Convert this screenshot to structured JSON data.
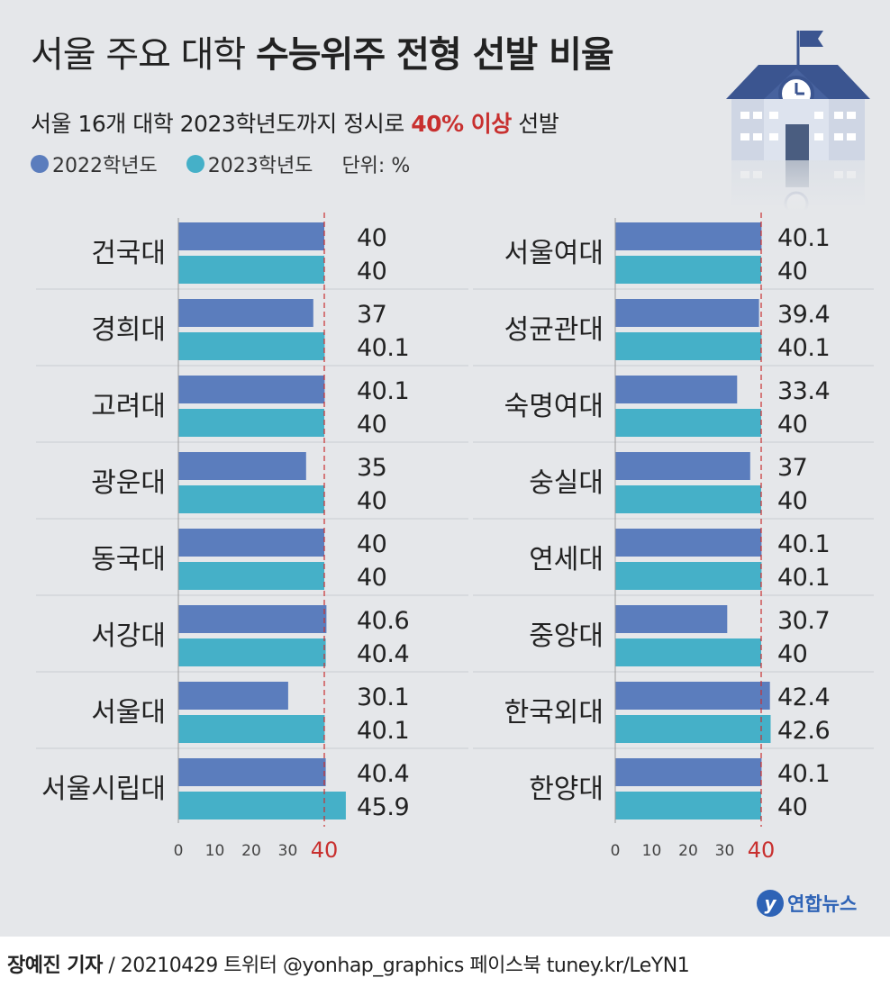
{
  "title_light": "서울 주요 대학",
  "title_bold": "수능위주 전형 선발 비율",
  "subtitle_pre": "서울 16개 대학 2023학년도까지 정시로",
  "subtitle_highlight": "40% 이상",
  "subtitle_post": "선발",
  "legend": {
    "series1": "2022학년도",
    "series2": "2023학년도",
    "unit": "단위: %"
  },
  "colors": {
    "series_2022": "#5b7dbd",
    "series_2023": "#45b0c8",
    "highlight": "#c8302f",
    "background": "#e5e7ea"
  },
  "chart_data": [
    {
      "type": "bar",
      "orientation": "horizontal",
      "categories": [
        "건국대",
        "경희대",
        "고려대",
        "광운대",
        "동국대",
        "서강대",
        "서울대",
        "서울시립대"
      ],
      "series": [
        {
          "name": "2022학년도",
          "values": [
            40,
            37,
            40.1,
            35,
            40,
            40.6,
            30.1,
            40.4
          ]
        },
        {
          "name": "2023학년도",
          "values": [
            40,
            40.1,
            40,
            40,
            40,
            40.4,
            40.1,
            45.9
          ]
        }
      ],
      "value_labels": [
        [
          "40",
          "37",
          "40.1",
          "35",
          "40",
          "40.6",
          "30.1",
          "40.4"
        ],
        [
          "40",
          "40.1",
          "40",
          "40",
          "40",
          "40.4",
          "40.1",
          "45.9"
        ]
      ],
      "x_ticks": [
        "0",
        "10",
        "20",
        "30"
      ],
      "reference_value": 40,
      "reference_label": "40",
      "xlim": [
        0,
        47
      ]
    },
    {
      "type": "bar",
      "orientation": "horizontal",
      "categories": [
        "서울여대",
        "성균관대",
        "숙명여대",
        "숭실대",
        "연세대",
        "중앙대",
        "한국외대",
        "한양대"
      ],
      "series": [
        {
          "name": "2022학년도",
          "values": [
            40.1,
            39.4,
            33.4,
            37,
            40.1,
            30.7,
            42.4,
            40.1
          ]
        },
        {
          "name": "2023학년도",
          "values": [
            40,
            40.1,
            40,
            40,
            40.1,
            40,
            42.6,
            40
          ]
        }
      ],
      "value_labels": [
        [
          "40.1",
          "39.4",
          "33.4",
          "37",
          "40.1",
          "30.7",
          "42.4",
          "40.1"
        ],
        [
          "40",
          "40.1",
          "40",
          "40",
          "40.1",
          "40",
          "42.6",
          "40"
        ]
      ],
      "x_ticks": [
        "0",
        "10",
        "20",
        "30"
      ],
      "reference_value": 40,
      "reference_label": "40",
      "xlim": [
        0,
        47
      ]
    }
  ],
  "brand": {
    "logo_letter": "y",
    "name": "연합뉴스"
  },
  "footer": {
    "reporter": "장예진 기자",
    "rest": " / 20210429 트위터 @yonhap_graphics  페이스북 tuney.kr/LeYN1"
  }
}
